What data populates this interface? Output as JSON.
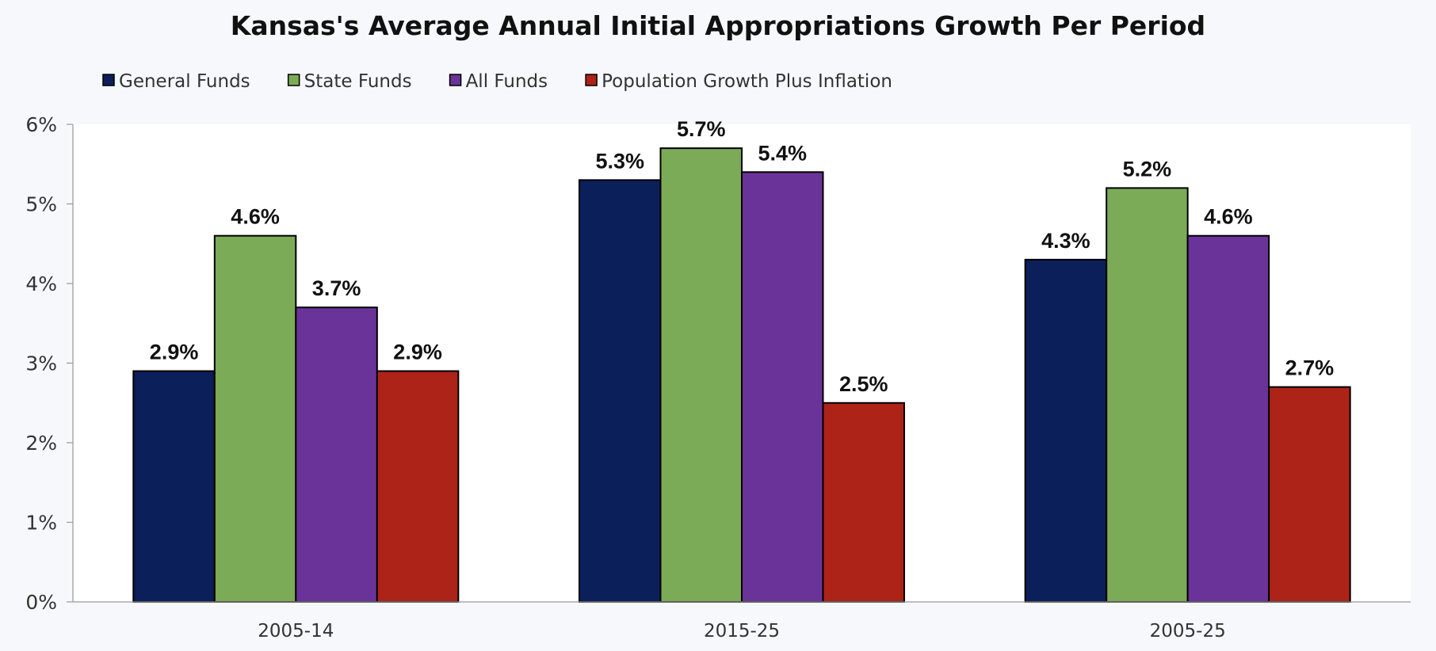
{
  "chart_data": {
    "type": "bar",
    "title": "Kansas's Average Annual Initial Appropriations Growth Per Period",
    "categories": [
      "2005-14",
      "2015-25",
      "2005-25"
    ],
    "series": [
      {
        "name": "General Funds",
        "color": "#0b1f5a",
        "values": [
          2.9,
          5.3,
          4.3
        ],
        "labels": [
          "2.9%",
          "5.3%",
          "4.3%"
        ]
      },
      {
        "name": "State Funds",
        "color": "#7bab57",
        "values": [
          4.6,
          5.7,
          5.2
        ],
        "labels": [
          "4.6%",
          "5.7%",
          "5.2%"
        ]
      },
      {
        "name": "All Funds",
        "color": "#6a3399",
        "values": [
          3.7,
          5.4,
          4.6
        ],
        "labels": [
          "3.7%",
          "5.4%",
          "4.6%"
        ]
      },
      {
        "name": "Population Growth Plus Inflation",
        "color": "#ad2318",
        "values": [
          2.9,
          2.5,
          2.7
        ],
        "labels": [
          "2.9%",
          "2.5%",
          "2.7%"
        ]
      }
    ],
    "ylim": [
      0,
      6
    ],
    "yticks": [
      "0%",
      "1%",
      "2%",
      "3%",
      "4%",
      "5%",
      "6%"
    ],
    "xlabel": "",
    "ylabel": "",
    "grid": false,
    "legend_position": "top-left"
  }
}
